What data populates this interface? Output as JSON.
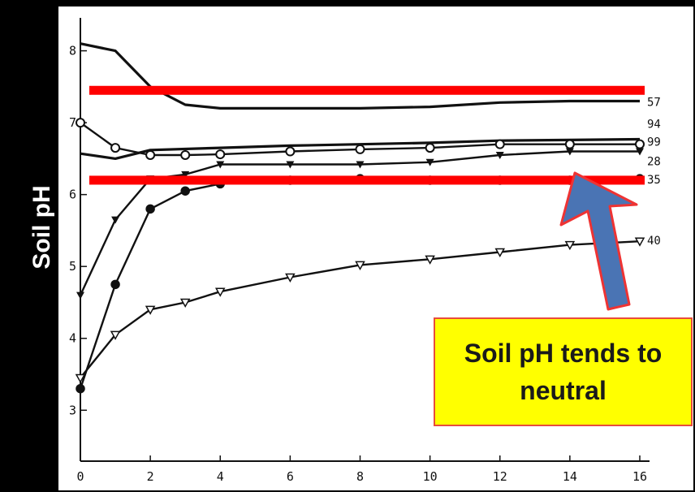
{
  "chart_data": {
    "type": "line",
    "ylabel": "Soil pH",
    "xlabel": "",
    "title": "",
    "xlim": [
      0,
      16
    ],
    "ylim": [
      2.8,
      8.3
    ],
    "x_ticks": [
      "0",
      "2",
      "4",
      "6",
      "8",
      "10",
      "12",
      "14",
      "16"
    ],
    "y_ticks": [
      "3",
      "4",
      "5",
      "6",
      "7",
      "8"
    ],
    "series": [
      {
        "name": "57",
        "marker": "none",
        "x": [
          0,
          1,
          2,
          3,
          4,
          6,
          8,
          10,
          12,
          14,
          16
        ],
        "y": [
          8.1,
          8.0,
          7.5,
          7.25,
          7.2,
          7.2,
          7.2,
          7.22,
          7.28,
          7.3,
          7.3
        ]
      },
      {
        "name": "94",
        "marker": "none",
        "x": [
          0,
          1,
          2,
          4,
          6,
          8,
          10,
          12,
          14,
          16
        ],
        "y": [
          6.57,
          6.5,
          6.62,
          6.65,
          6.68,
          6.7,
          6.72,
          6.75,
          6.76,
          6.77
        ]
      },
      {
        "name": "99",
        "marker": "open-circle",
        "x": [
          0,
          1,
          2,
          3,
          4,
          6,
          8,
          10,
          12,
          14,
          16
        ],
        "y": [
          7.0,
          6.65,
          6.55,
          6.55,
          6.56,
          6.6,
          6.63,
          6.65,
          6.7,
          6.7,
          6.7
        ]
      },
      {
        "name": "28",
        "marker": "filled-triangle",
        "x": [
          0,
          1,
          2,
          3,
          4,
          6,
          8,
          10,
          12,
          14,
          16
        ],
        "y": [
          4.6,
          5.65,
          6.22,
          6.28,
          6.42,
          6.42,
          6.42,
          6.45,
          6.55,
          6.6,
          6.6
        ]
      },
      {
        "name": "35",
        "marker": "filled-circle",
        "x": [
          0,
          1,
          2,
          3,
          4,
          6,
          8,
          10,
          12,
          14,
          16
        ],
        "y": [
          3.3,
          4.75,
          5.8,
          6.05,
          6.15,
          6.2,
          6.22,
          6.2,
          6.2,
          6.2,
          6.22
        ]
      },
      {
        "name": "40",
        "marker": "open-triangle",
        "x": [
          0,
          1,
          2,
          3,
          4,
          6,
          8,
          10,
          12,
          14,
          16
        ],
        "y": [
          3.45,
          4.05,
          4.4,
          4.5,
          4.65,
          4.85,
          5.02,
          5.1,
          5.2,
          5.3,
          5.35
        ]
      }
    ],
    "reference_lines": [
      {
        "y": 7.45,
        "color": "#ff0000"
      },
      {
        "y": 6.2,
        "color": "#ff0000"
      }
    ],
    "annotation": {
      "text": "Soil pH tends to neutral",
      "background": "#ffff00",
      "border": "#e74c3c",
      "arrow_color": "#4a74b4"
    },
    "colors": {
      "line": "#111111",
      "plot_bg": "#ffffff",
      "page_bg": "#000000"
    }
  }
}
